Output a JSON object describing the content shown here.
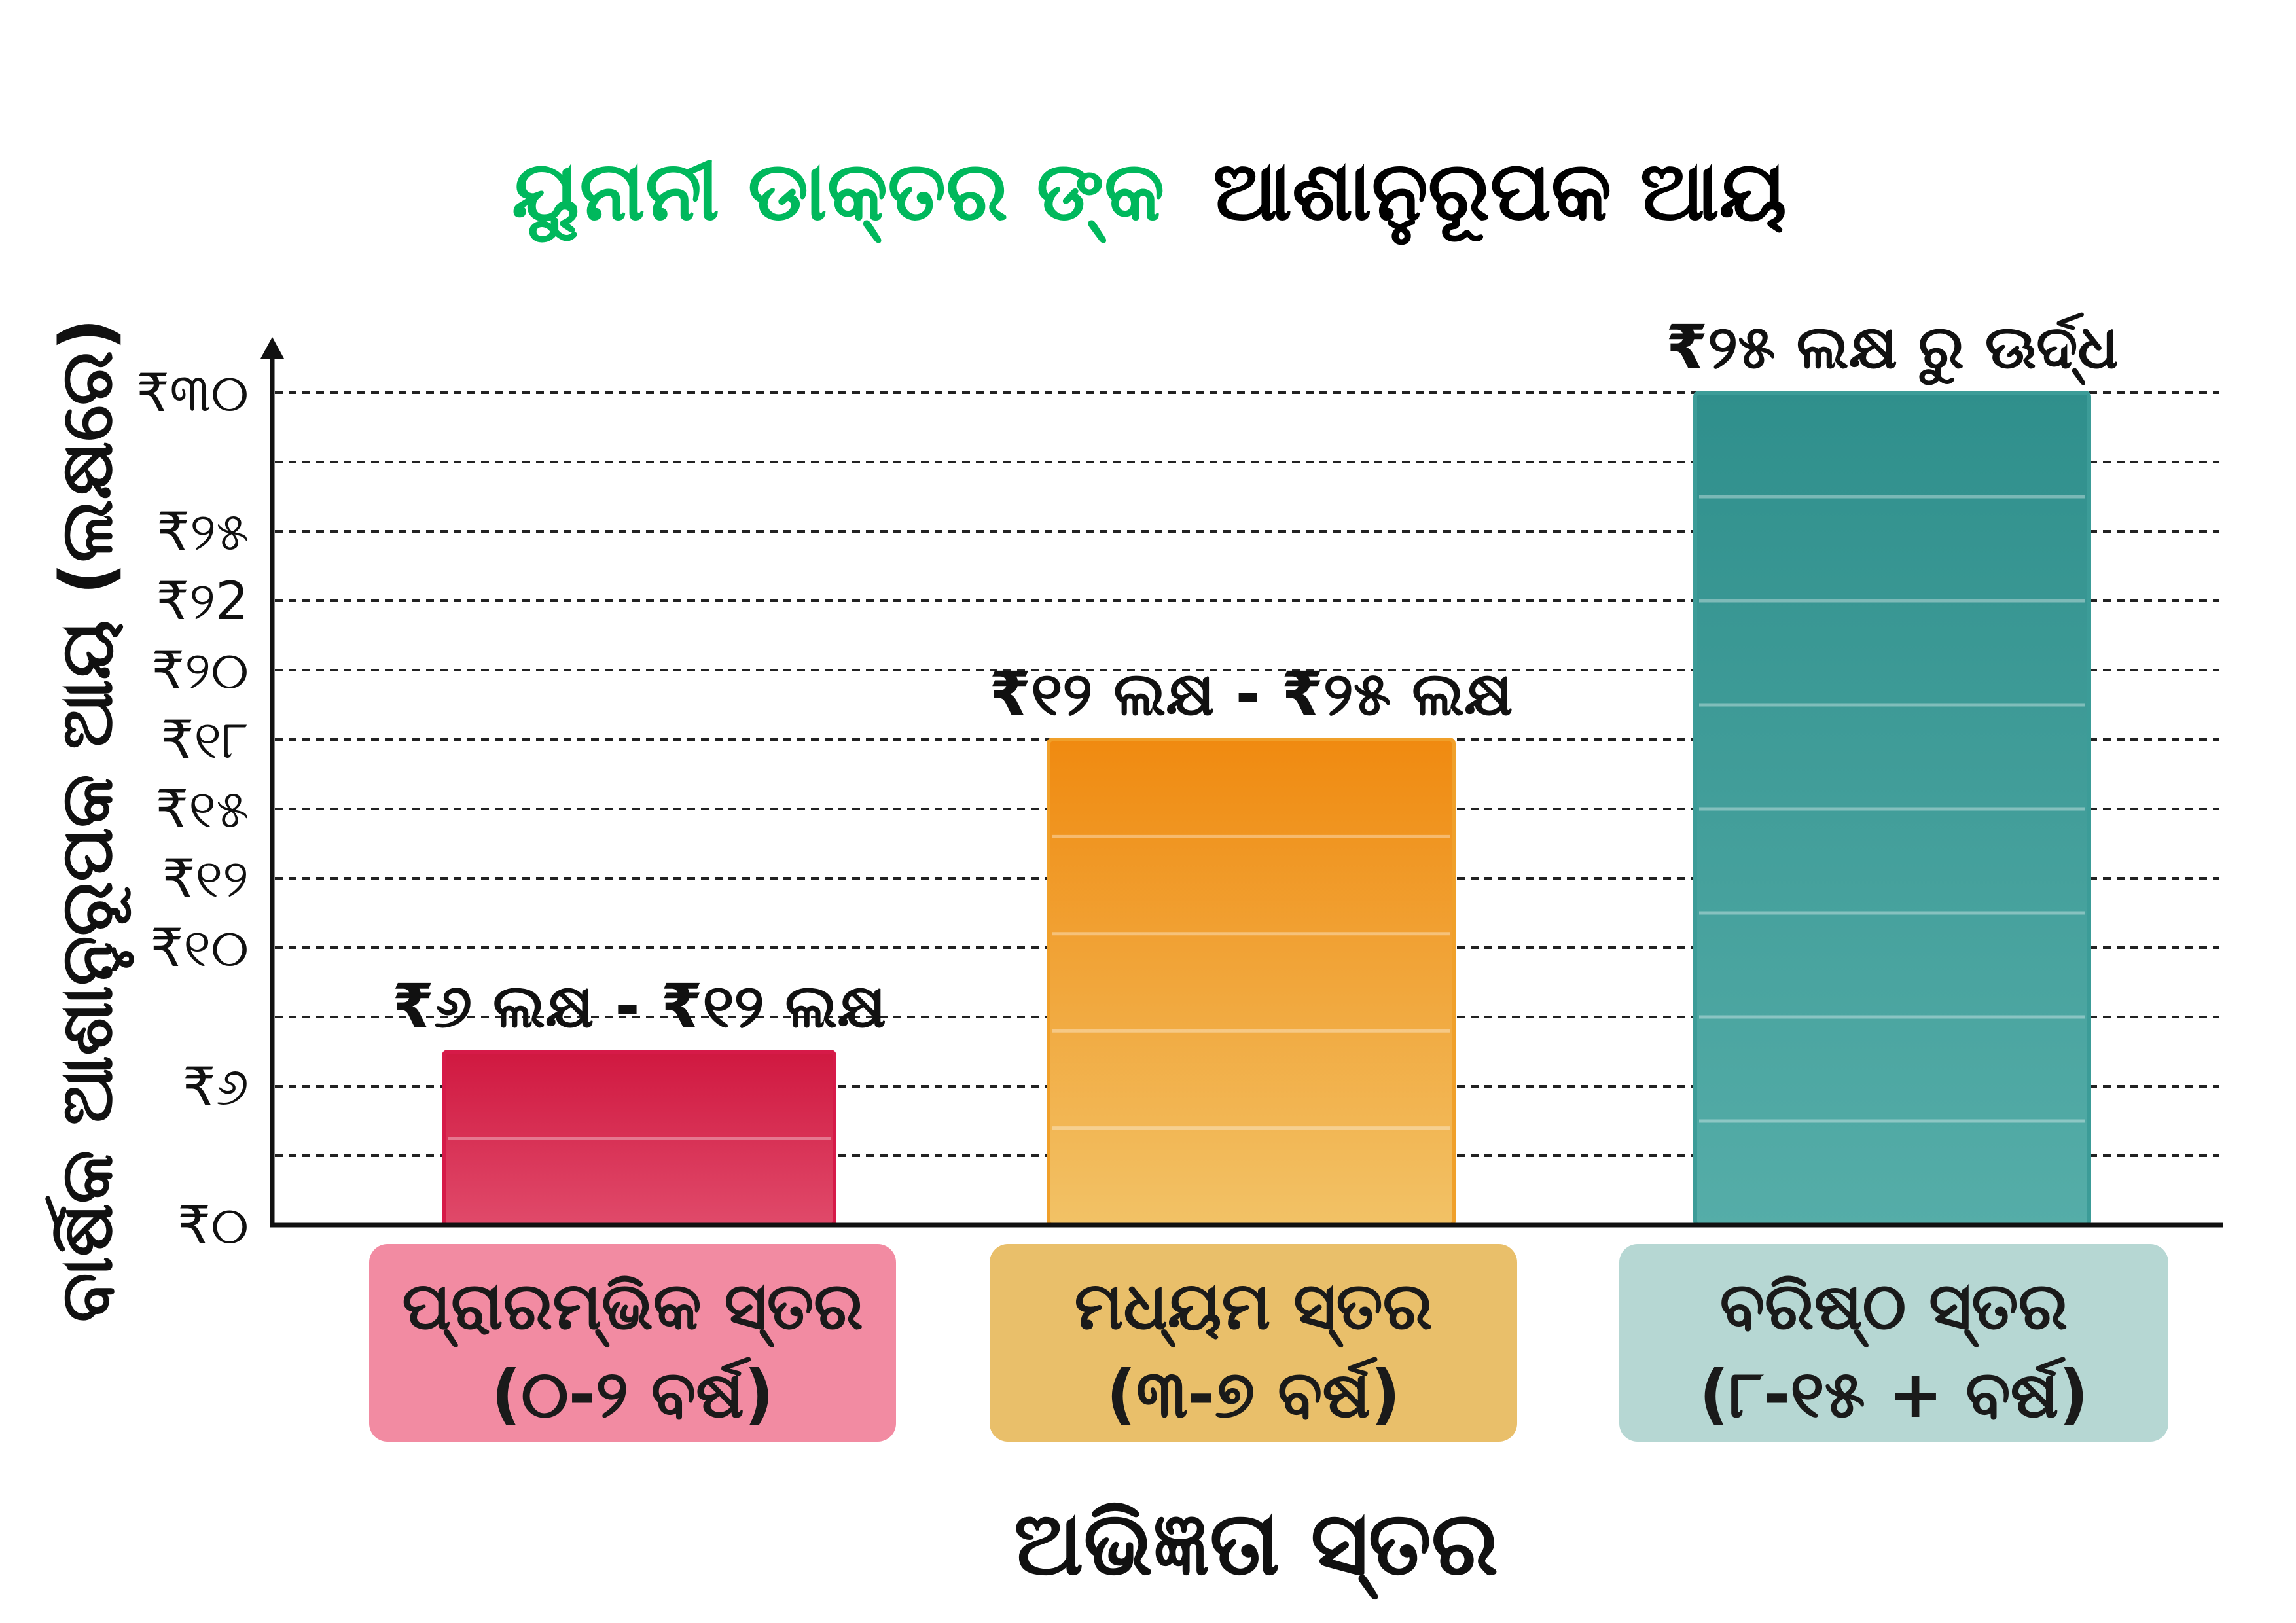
{
  "chart_data": {
    "type": "bar",
    "title_parts": [
      {
        "text": "ୟୁନାନୀ ଡାକ୍ତର ଙ୍କ",
        "color": "#00b85c"
      },
      {
        "text": "ଆଶାନୁରୂପକ ଆୟ",
        "color": "#000000"
      }
    ],
    "xlabel": "ଅଭିଜ୍ଞତା ସ୍ତର",
    "ylabel": "ବାର୍ଷିକ ଆଶାନୁରୂପକ ଆୟ (ଲକ୍ଷରେ)",
    "y_ticks": [
      {
        "value": 0,
        "label": "₹୦"
      },
      {
        "value": null,
        "label": ""
      },
      {
        "value": 6,
        "label": "₹୬"
      },
      {
        "value": null,
        "label": ""
      },
      {
        "value": 10,
        "label": "₹୧୦"
      },
      {
        "value": 12,
        "label": "₹୧୨"
      },
      {
        "value": 15,
        "label": "₹୧୫"
      },
      {
        "value": 18,
        "label": "₹୧୮"
      },
      {
        "value": 20,
        "label": "₹୨୦"
      },
      {
        "value": 22,
        "label": "₹୨2"
      },
      {
        "value": 25,
        "label": "₹୨୫"
      },
      {
        "value": null,
        "label": ""
      },
      {
        "value": 30,
        "label": "₹୩୦"
      }
    ],
    "ylim": [
      0,
      30
    ],
    "grid": "horizontal-dashed",
    "categories": [
      {
        "line1": "ପ୍ରାରମ୍ଭିକ ସ୍ତର",
        "line2": "(୦-୨ ବର୍ଷ)"
      },
      {
        "line1": "ମଧ୍ୟମ ସ୍ତର",
        "line2": "(୩-୭ ବର୍ଷ)"
      },
      {
        "line1": "ବରିଷ୍ଠ ସ୍ତର",
        "line2": "(୮-୧୫ + ବର୍ଷ)"
      }
    ],
    "values": [
      7,
      18,
      30
    ],
    "data_labels": [
      "₹୬ ଲକ୍ଷ - ₹୧୨ ଲକ୍ଷ",
      "₹୧୨ ଲକ୍ଷ - ₹୨୫ ଲକ୍ଷ",
      "₹୨୫ ଲକ୍ଷ ରୁ ଊର୍ଦ୍ଧ"
    ],
    "bar_colors": [
      "#d61a48",
      "#f0a02a",
      "#3c9c98"
    ],
    "category_box_colors": [
      "#f28ba2",
      "#e9bf6a",
      "#b6d7d3"
    ]
  }
}
